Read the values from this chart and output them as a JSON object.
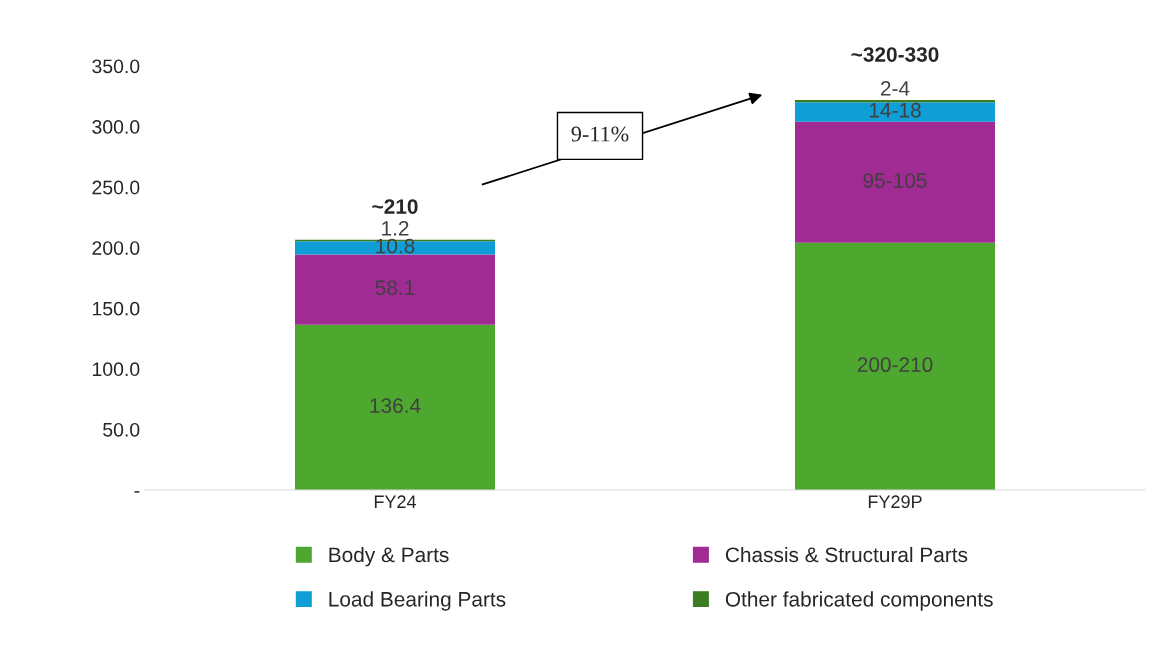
{
  "chart_data": {
    "type": "bar",
    "stacked": true,
    "categories": [
      "FY24",
      "FY29P"
    ],
    "series": [
      {
        "name": "Body & Parts",
        "color": "#4ea72e",
        "values": [
          136.4,
          204
        ],
        "value_labels": [
          "136.4",
          "200-210"
        ]
      },
      {
        "name": "Chassis & Structural Parts",
        "color": "#a02b93",
        "values": [
          58.1,
          100
        ],
        "value_labels": [
          "58.1",
          "95-105"
        ]
      },
      {
        "name": "Load Bearing Parts",
        "color": "#0f9ed5",
        "values": [
          10.8,
          16
        ],
        "value_labels": [
          "10.8",
          "14-18"
        ]
      },
      {
        "name": "Other fabricated components",
        "color": "#3b7d23",
        "values": [
          1.2,
          2
        ],
        "value_labels": [
          "1.2",
          "2-4"
        ]
      }
    ],
    "annotations": [
      "~210",
      "~320-330",
      "9-11%"
    ],
    "ylim": [
      0,
      350
    ],
    "yticks": [
      {
        "value": 0,
        "label": "-"
      },
      {
        "value": 50,
        "label": "50.0"
      },
      {
        "value": 100,
        "label": "100.0"
      },
      {
        "value": 150,
        "label": "150.0"
      },
      {
        "value": 200,
        "label": "200.0"
      },
      {
        "value": 250,
        "label": "250.0"
      },
      {
        "value": 300,
        "label": "300.0"
      },
      {
        "value": 350,
        "label": "350.0"
      }
    ],
    "grid": false,
    "legend": "bottom"
  }
}
